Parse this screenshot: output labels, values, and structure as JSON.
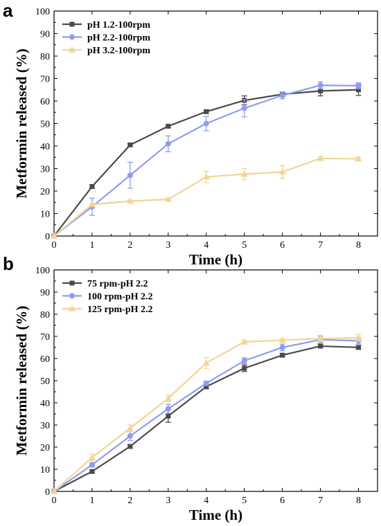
{
  "chart_data": [
    {
      "type": "line",
      "panel_label": "a",
      "xlabel": "Time (h)",
      "ylabel": "Metformin released (%)",
      "xlim": [
        0,
        8.5
      ],
      "ylim": [
        0,
        100
      ],
      "xticks": [
        0,
        1,
        2,
        3,
        4,
        5,
        6,
        7,
        8
      ],
      "yticks": [
        0,
        10,
        20,
        30,
        40,
        50,
        60,
        70,
        80,
        90,
        100
      ],
      "grid": false,
      "legend_position": "top-left",
      "x": [
        0,
        1,
        2,
        3,
        4,
        5,
        6,
        7,
        8
      ],
      "series": [
        {
          "name": "pH 1.2-100rpm",
          "color": "#4a4a4a",
          "marker": "square",
          "values": [
            0,
            22,
            40.5,
            48.8,
            55.3,
            60.3,
            63,
            64.5,
            65
          ],
          "errors": [
            0,
            0.8,
            0.6,
            0.6,
            0.8,
            2,
            1,
            2.2,
            2.5
          ]
        },
        {
          "name": "pH 2.2-100rpm",
          "color": "#8f9cf0",
          "marker": "circle",
          "values": [
            0,
            13,
            27,
            41,
            50,
            56.8,
            62.5,
            67,
            66.8
          ],
          "errors": [
            0,
            3.8,
            5.8,
            3.5,
            3.2,
            3.8,
            1.5,
            1.5,
            1.3
          ]
        },
        {
          "name": "pH 3.2-100rpm",
          "color": "#f2d496",
          "marker": "triangle",
          "values": [
            0,
            14,
            15.5,
            16.3,
            26.3,
            27.5,
            28.5,
            34.5,
            34.3
          ],
          "errors": [
            0,
            0.5,
            0.5,
            0.5,
            2.5,
            2.5,
            2.8,
            0.8,
            0.8
          ]
        }
      ]
    },
    {
      "type": "line",
      "panel_label": "b",
      "xlabel": "Time (h)",
      "ylabel": "Metformin released (%)",
      "xlim": [
        0,
        8.5
      ],
      "ylim": [
        0,
        100
      ],
      "xticks": [
        0,
        1,
        2,
        3,
        4,
        5,
        6,
        7,
        8
      ],
      "yticks": [
        0,
        10,
        20,
        30,
        40,
        50,
        60,
        70,
        80,
        90,
        100
      ],
      "grid": false,
      "legend_position": "top-left",
      "x": [
        0,
        1,
        2,
        3,
        4,
        5,
        6,
        7,
        8
      ],
      "series": [
        {
          "name": "75  rpm-pH 2.2",
          "color": "#4a4a4a",
          "marker": "square",
          "values": [
            0,
            9,
            20.3,
            34,
            47.3,
            55.6,
            61.5,
            65.6,
            65
          ],
          "errors": [
            0,
            0.6,
            0.8,
            2.8,
            1,
            1.5,
            0.8,
            0.8,
            0.8
          ]
        },
        {
          "name": "100 rpm-pH 2.2",
          "color": "#8f9cf0",
          "marker": "circle",
          "values": [
            0,
            12,
            25,
            37.3,
            48.8,
            59,
            65,
            68.5,
            68
          ],
          "errors": [
            0,
            1,
            2,
            2,
            1,
            1.3,
            1.5,
            1.5,
            1.5
          ]
        },
        {
          "name": "125 rpm-pH 2.2",
          "color": "#f2d496",
          "marker": "triangle",
          "values": [
            0,
            15.3,
            28.5,
            42,
            58,
            67.5,
            68.3,
            69,
            69.3
          ],
          "errors": [
            0,
            1.5,
            1.5,
            1.5,
            2.5,
            0.8,
            0.8,
            1.5,
            1.5
          ]
        }
      ]
    }
  ]
}
